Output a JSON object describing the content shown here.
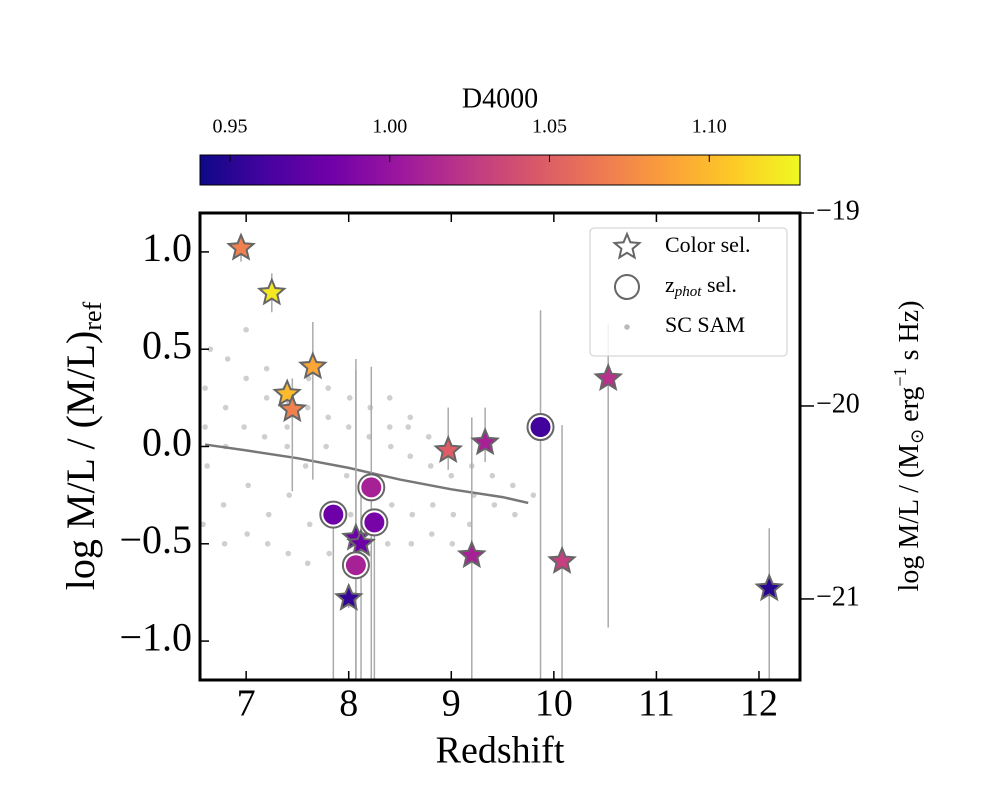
{
  "chart_data": {
    "type": "scatter",
    "x_label": "Redshift",
    "y_label_parts": [
      "log M/L / (M/L)",
      "ref"
    ],
    "y2_label_parts": [
      "log M/L / (M",
      "⊙",
      " erg",
      "−1",
      " s Hz)"
    ],
    "xlim": [
      6.55,
      12.4
    ],
    "xticks": [
      7,
      8,
      9,
      10,
      11,
      12
    ],
    "ylim": [
      -1.2,
      1.2
    ],
    "yticks": [
      {
        "value": -1.0,
        "label": "−1.0"
      },
      {
        "value": -0.5,
        "label": "−0.5"
      },
      {
        "value": 0.0,
        "label": "0.0"
      },
      {
        "value": 0.5,
        "label": "0.5"
      },
      {
        "value": 1.0,
        "label": "1.0"
      }
    ],
    "y2lim": [
      -21.42,
      -19
    ],
    "y2ticks": [
      {
        "value": -21,
        "label": "−21"
      },
      {
        "value": -20,
        "label": "−20"
      },
      {
        "value": -19,
        "label": "−19"
      }
    ],
    "colorbar": {
      "label": "D4000",
      "clim": [
        0.9406,
        1.1284
      ],
      "ticks": [
        {
          "value": 0.95,
          "label": "0.95"
        },
        {
          "value": 1.0,
          "label": "1.00"
        },
        {
          "value": 1.05,
          "label": "1.05"
        },
        {
          "value": 1.1,
          "label": "1.10"
        }
      ],
      "colormap": [
        "#0d0887",
        "#46039f",
        "#7201a8",
        "#9c179e",
        "#bd3786",
        "#d8576b",
        "#ed7953",
        "#fb9f3a",
        "#fdca26",
        "#f0f921"
      ]
    },
    "legend": "upper right",
    "errorbar_color": "#aaaaaa",
    "edge_color": "#666666",
    "series": [
      {
        "name": "Color sel.",
        "marker": "star",
        "x": [
          6.95,
          7.25,
          7.65,
          7.4,
          7.45,
          8.97,
          9.33,
          10.53,
          9.2,
          10.08,
          12.1,
          8.0,
          8.07,
          8.12
        ],
        "y": [
          1.02,
          0.79,
          0.41,
          0.27,
          0.19,
          -0.02,
          0.02,
          0.35,
          -0.56,
          -0.59,
          -0.73,
          -0.78,
          -0.47,
          -0.5
        ],
        "c": [
          1.07,
          1.12,
          1.09,
          1.1,
          1.07,
          1.05,
          1.01,
          1.02,
          1.01,
          1.03,
          0.95,
          0.955,
          0.98,
          0.98
        ],
        "yerr_low": [
          0.07,
          0.1,
          0.58,
          0.05,
          0.42,
          0.1,
          0.1,
          1.28,
          0.7,
          0.65,
          0.5,
          0.05,
          0.75,
          0.7
        ],
        "yerr_high": [
          0.07,
          0.1,
          0.23,
          0.05,
          0.16,
          0.22,
          0.18,
          0.28,
          0.71,
          0.7,
          0.31,
          0.05,
          0.92,
          0.3
        ]
      },
      {
        "name_parts": [
          "z",
          "phot",
          " sel."
        ],
        "marker": "circle",
        "x": [
          7.85,
          8.07,
          8.22,
          8.25,
          9.87
        ],
        "y": [
          -0.35,
          -0.61,
          -0.21,
          -0.39,
          0.1
        ],
        "c": [
          0.98,
          1.01,
          1.01,
          0.985,
          0.96
        ],
        "yerr_low": [
          0.85,
          0.6,
          0.99,
          0.81,
          1.3
        ],
        "yerr_high": [
          0.05,
          1.0,
          0.62,
          0.05,
          0.6
        ]
      },
      {
        "name": "SC SAM",
        "marker": "dot",
        "color": "#bbbbbb",
        "x": [
          6.6,
          6.62,
          6.58,
          6.65,
          6.6,
          6.8,
          6.78,
          6.82,
          6.8,
          6.79,
          7.0,
          7.02,
          6.98,
          7.01,
          7.0,
          7.2,
          7.22,
          7.18,
          7.2,
          7.21,
          7.4,
          7.42,
          7.38,
          7.41,
          7.4,
          7.6,
          7.62,
          7.58,
          7.61,
          7.6,
          7.8,
          7.82,
          7.78,
          7.81,
          7.8,
          8.0,
          8.02,
          7.98,
          8.01,
          8.0,
          8.2,
          8.22,
          8.18,
          8.21,
          8.2,
          8.4,
          8.42,
          8.38,
          8.41,
          8.4,
          8.6,
          8.62,
          8.58,
          8.61,
          8.6,
          8.8,
          8.82,
          8.78,
          8.81,
          9.0,
          9.02,
          8.98,
          9.01,
          9.2,
          9.22,
          9.18,
          9.4,
          9.42,
          9.38,
          9.6,
          9.62,
          9.8
        ],
        "y": [
          0.3,
          -0.1,
          -0.4,
          0.5,
          0.1,
          0.2,
          -0.3,
          0.45,
          0.0,
          -0.5,
          0.35,
          -0.2,
          0.1,
          -0.45,
          0.6,
          0.25,
          -0.35,
          0.05,
          0.4,
          -0.5,
          0.1,
          -0.25,
          0.3,
          -0.55,
          0.0,
          0.2,
          -0.4,
          -0.1,
          0.35,
          -0.6,
          0.15,
          -0.3,
          0.0,
          -0.55,
          0.3,
          0.1,
          -0.35,
          -0.15,
          0.25,
          -0.6,
          0.05,
          -0.4,
          -0.2,
          0.2,
          -0.55,
          0.1,
          -0.3,
          -0.5,
          0.0,
          0.25,
          -0.05,
          -0.35,
          0.1,
          -0.5,
          0.15,
          -0.1,
          -0.3,
          0.05,
          -0.45,
          -0.15,
          -0.35,
          0.0,
          -0.5,
          -0.1,
          -0.25,
          -0.4,
          -0.15,
          -0.3,
          0.0,
          -0.2,
          -0.35,
          -0.25
        ]
      },
      {
        "marker": "line",
        "color": "#777777",
        "x": [
          6.6,
          7.0,
          7.5,
          8.0,
          8.5,
          9.0,
          9.5,
          9.75
        ],
        "y": [
          0.01,
          -0.02,
          -0.06,
          -0.11,
          -0.17,
          -0.22,
          -0.26,
          -0.29
        ]
      }
    ]
  }
}
